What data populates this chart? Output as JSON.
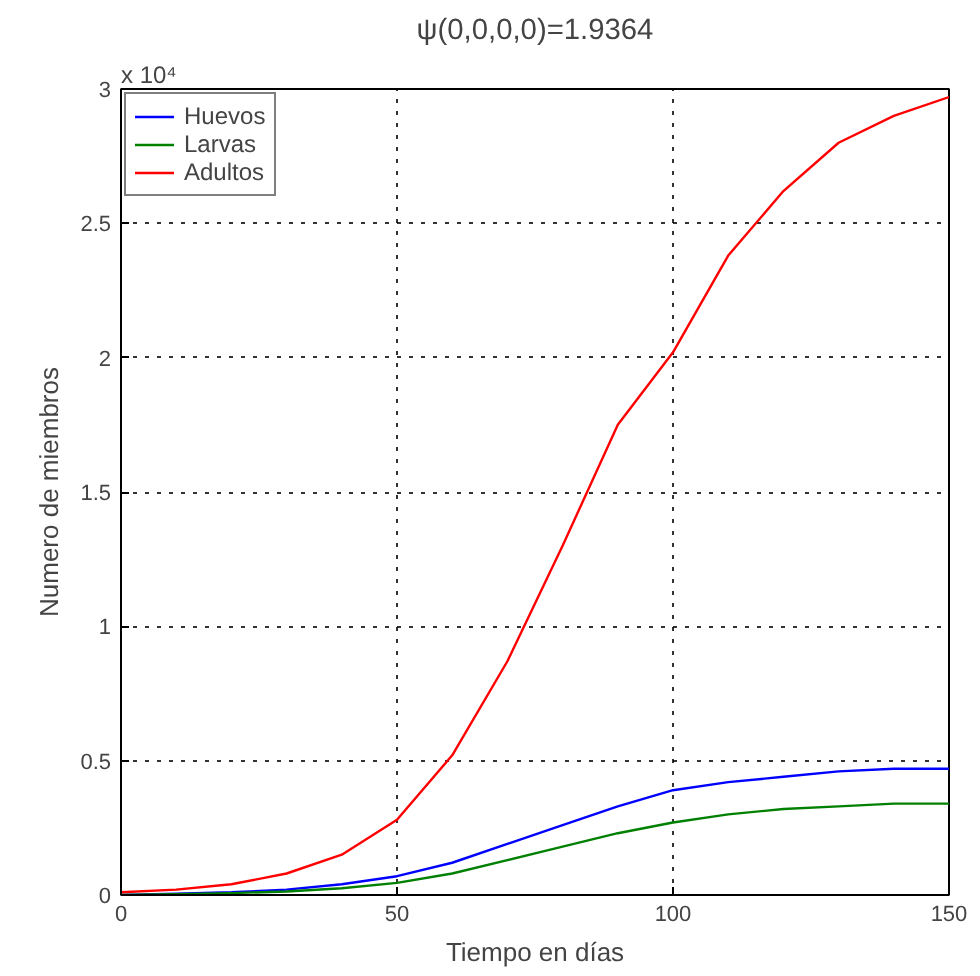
{
  "chart_data": {
    "type": "line",
    "title": "ψ(0,0,0,0)=1.9364",
    "xlabel": "Tiempo en días",
    "ylabel": "Numero de miembros",
    "annotations": [
      "x 10⁴"
    ],
    "x": [
      0,
      10,
      20,
      30,
      40,
      50,
      60,
      70,
      80,
      90,
      100,
      110,
      120,
      130,
      140,
      150
    ],
    "xlim": [
      0,
      150
    ],
    "xticks": [
      0,
      50,
      100,
      150
    ],
    "ylim": [
      0,
      3
    ],
    "yticks": [
      0,
      0.5,
      1,
      1.5,
      2,
      2.5,
      3
    ],
    "grid": true,
    "legend": "top left",
    "line_style": "solid",
    "series": [
      {
        "name": "Huevos",
        "color": "#0000ff",
        "values": [
          0.0,
          0.005,
          0.01,
          0.02,
          0.04,
          0.07,
          0.12,
          0.19,
          0.26,
          0.33,
          0.39,
          0.42,
          0.44,
          0.46,
          0.47,
          0.47
        ]
      },
      {
        "name": "Larvas",
        "color": "#008000",
        "values": [
          0.0,
          0.003,
          0.007,
          0.013,
          0.025,
          0.045,
          0.08,
          0.13,
          0.18,
          0.23,
          0.27,
          0.3,
          0.32,
          0.33,
          0.34,
          0.34
        ]
      },
      {
        "name": "Adultos",
        "color": "#ff0000",
        "values": [
          0.01,
          0.02,
          0.04,
          0.08,
          0.15,
          0.28,
          0.52,
          0.87,
          1.3,
          1.75,
          2.02,
          2.38,
          2.62,
          2.8,
          2.9,
          2.97
        ]
      }
    ]
  }
}
